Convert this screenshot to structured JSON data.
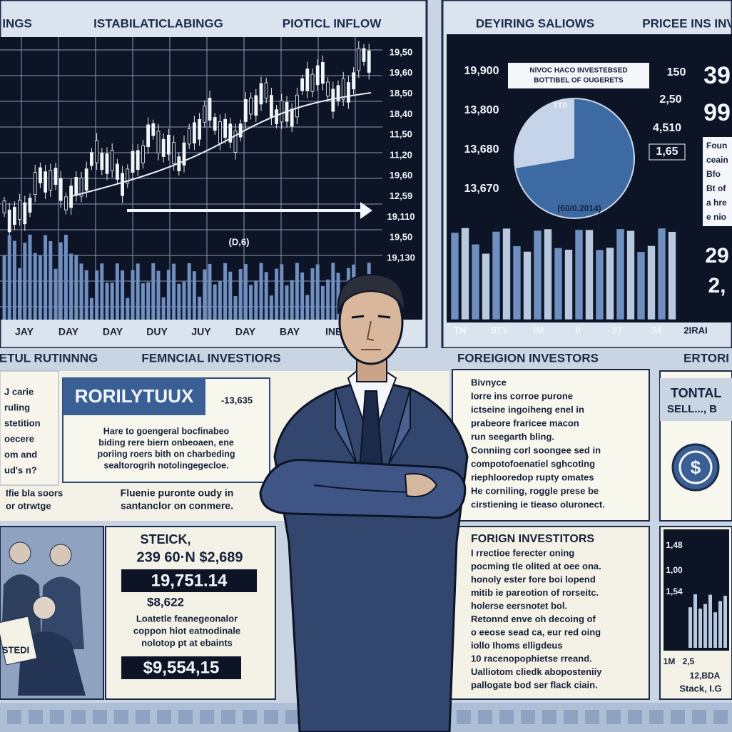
{
  "top_left_panel": {
    "headers": [
      "INGS",
      "ISTABILATICLABINGG",
      "PIOTICL INFLOW"
    ],
    "axis_labels": [
      "19,50",
      "19,60",
      "18,50",
      "18,40",
      "11,50",
      "11,20",
      "19,60",
      "12,59",
      "19,110",
      "19,50",
      "19,130"
    ],
    "x_labels": [
      "JAY",
      "DAY",
      "DAY",
      "DUY",
      "JUY",
      "DAY",
      "BAY",
      "INB"
    ],
    "annotation": "(D,6)"
  },
  "top_right_panel": {
    "headers": [
      "DEYIRING SALIOWS",
      "PRICEE INS INV"
    ],
    "left_labels": [
      "19,900",
      "13,800",
      "13,680",
      "13,670"
    ],
    "note_lines": [
      "NIVOC HACO INVESTEBSED",
      "BOTTIBEL OF OUGERETS"
    ],
    "pie_labels": [
      "150",
      "2,50",
      "4,510",
      "1,65"
    ],
    "pie_caption": "(60/0.2014)",
    "pie_tag": "TTA",
    "big_numbers": [
      "39",
      "99",
      "29",
      "2,"
    ],
    "side_text": [
      "Foun",
      "ceain",
      "Bfo",
      "Bt of",
      "a hre",
      "e nio"
    ],
    "x_labels": [
      "TN",
      "STY",
      "IM",
      "0",
      "27",
      "34",
      "2IRAI"
    ]
  },
  "section_headers": [
    "ETUL RUTINNNG",
    "FEMNCIAL INVESTIORS",
    "FOREIGION INVESTORS",
    "ERTORI"
  ],
  "left_column": {
    "lines": [
      "J carie",
      "ruling",
      "stetition",
      "oecere",
      "om and",
      "ud's n?"
    ],
    "footer": [
      "Ifie bla soors",
      "or otrwtge"
    ],
    "sign": "STEDI"
  },
  "rorily_box": {
    "title": "RORILYTUUX",
    "value": "-13,635",
    "lines": [
      "Hare to goengeral bocfinabeo",
      "biding rere biern onbeoaen, ene",
      "poriing roers bith on charbeding",
      "sealtorogrih notolingegecloe."
    ],
    "caption": [
      "Fluenie puronte oudy in",
      "santanclor on conmere."
    ]
  },
  "stock_box": {
    "title": "STEICK,",
    "subtitle": "239 60·N $2,689",
    "price": "19,751.14",
    "change": "$8,622",
    "lines": [
      "Loatetle feanegeonalor",
      "coppon hiot eatnodinale",
      "nolotop pt at ebaints"
    ],
    "total": "$9,554,15"
  },
  "foreign_box": {
    "bullets": [
      "Bivnyce",
      "Iorre ins corroe purone",
      "ictseine ingoiheng enel in",
      "prabeore fraricee macon",
      "run seegarth bling.",
      "Conniing corl soongee sed in",
      "compotofoenatiel sghcoting",
      "riephlooredop rupty omates",
      "He corniling, roggle prese be",
      "cirstiening ie tieaso oluronect."
    ]
  },
  "foreign_box_2": {
    "title": "FORIGN INVESTITORS",
    "bullets": [
      "I rrectioe ferecter oning",
      "pocming tle olited at oee ona.",
      "honoly ester fore boi lopend",
      "mitib ie pareotion of rorseitc.",
      "holerse eersnotet bol.",
      "Retonnd enve oh decoing of",
      "o eeose sead ca, eur red oing",
      "iollo Ihoms elligdeus",
      "10 racenopophietse rreand.",
      "Ualliotom cliedk aboposteniiy",
      "pallogate bod ser flack ciain."
    ]
  },
  "total_box": {
    "title": "TONTAL",
    "subtitle": "SELL..., B"
  },
  "small_chart": {
    "labels": [
      "1,48",
      "1,00",
      "1,54"
    ],
    "x_labels": [
      "1M",
      "2,5",
      "12,BDA"
    ],
    "caption": "Stack, I.G"
  }
}
